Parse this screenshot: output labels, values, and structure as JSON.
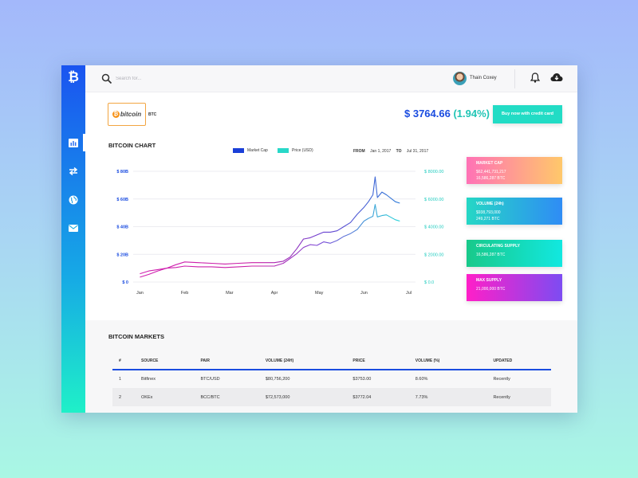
{
  "sidebar": {
    "logo": "₿",
    "items": [
      {
        "icon": "bar-chart-icon",
        "active": true
      },
      {
        "icon": "exchange-arrows-icon",
        "active": false
      },
      {
        "icon": "globe-icon",
        "active": false
      },
      {
        "icon": "mail-icon",
        "active": false
      }
    ]
  },
  "topbar": {
    "search_placeholder": "Search for...",
    "user_name": "Thain Coxey"
  },
  "coin": {
    "logo_text": "bitcoin",
    "ticker": "BTC",
    "price": "$ 3764.66",
    "change": "(1.94%)",
    "buy_label": "Buy now with credit card"
  },
  "chart": {
    "title": "BITCOIN CHART",
    "legend_market_cap": "Market Cap",
    "legend_price": "Price (USD)",
    "from_label": "FROM",
    "from_value": "Jan 1, 2017",
    "to_label": "TO",
    "to_value": "Jul 31, 2017"
  },
  "chart_data": {
    "type": "line",
    "title": "BITCOIN CHART",
    "x_ticks": [
      "Jan",
      "Feb",
      "Mar",
      "Apr",
      "May",
      "Jun",
      "Jul"
    ],
    "y_left_ticks": [
      "$ 0",
      "$ 20B",
      "$ 40B",
      "$ 60B",
      "$ 80B"
    ],
    "y_right_ticks": [
      "$ 0.0",
      "$ 2000.00",
      "$ 4000.00",
      "$ 6000.00",
      "$ 8000.00"
    ],
    "ylim_left": [
      0,
      80
    ],
    "ylim_right": [
      0,
      8000
    ],
    "grid": true,
    "series": [
      {
        "name": "Market Cap",
        "axis": "left",
        "x": [
          0,
          0.2,
          0.4,
          0.6,
          0.8,
          1.0,
          1.3,
          1.6,
          1.9,
          2.2,
          2.5,
          2.8,
          3.0,
          3.2,
          3.35,
          3.5,
          3.65,
          3.8,
          3.95,
          4.1,
          4.25,
          4.4,
          4.55,
          4.7,
          4.85,
          5.0,
          5.1,
          5.2,
          5.25,
          5.3,
          5.4,
          5.5,
          5.7,
          5.8
        ],
        "values": [
          3.5,
          5.5,
          8,
          10,
          12.5,
          14.5,
          14,
          13.5,
          13,
          13.5,
          14,
          14,
          14,
          15,
          18,
          24,
          31,
          32,
          34,
          36,
          36,
          37,
          40,
          43,
          49,
          54,
          58,
          63,
          76,
          61,
          65,
          63,
          58,
          57
        ]
      },
      {
        "name": "Price (USD)",
        "axis": "right",
        "x": [
          0,
          0.2,
          0.4,
          0.6,
          0.8,
          1.0,
          1.3,
          1.6,
          1.9,
          2.2,
          2.5,
          2.8,
          3.0,
          3.2,
          3.35,
          3.5,
          3.65,
          3.8,
          3.95,
          4.1,
          4.25,
          4.4,
          4.55,
          4.7,
          4.85,
          5.0,
          5.1,
          5.2,
          5.25,
          5.3,
          5.4,
          5.5,
          5.7,
          5.8
        ],
        "values": [
          600,
          800,
          900,
          1000,
          1050,
          1150,
          1100,
          1100,
          1050,
          1100,
          1150,
          1150,
          1150,
          1350,
          1700,
          2050,
          2500,
          2700,
          2650,
          2900,
          2800,
          3000,
          3300,
          3500,
          3800,
          4400,
          4600,
          4750,
          5600,
          4700,
          4800,
          4850,
          4500,
          4400
        ]
      }
    ]
  },
  "cards": [
    {
      "label": "MARKET CAP",
      "lines": [
        "$62,441,731,217",
        "16,586,287 BTC"
      ],
      "gradient": [
        "#ff72b6",
        "#ffc86a"
      ]
    },
    {
      "label": "VOLUME (24h)",
      "lines": [
        "$938,793,000",
        "249,271 BTC"
      ],
      "gradient": [
        "#25d7c5",
        "#2f8cf5"
      ]
    },
    {
      "label": "CIRCULATING SUPPLY",
      "lines": [
        "16,586,287 BTC"
      ],
      "gradient": [
        "#18c98a",
        "#12e8e0"
      ]
    },
    {
      "label": "MAX SUPPLY",
      "lines": [
        "21,000,000 BTC"
      ],
      "gradient": [
        "#ff1fc8",
        "#7d4cf2"
      ]
    }
  ],
  "markets": {
    "title": "BITCOIN MARKETS",
    "columns": [
      "#",
      "SOURCE",
      "PAIR",
      "VOLUME (24H)",
      "PRICE",
      "VOLUME (%)",
      "UPDATED"
    ],
    "rows": [
      [
        "1",
        "Bitfinex",
        "BTC/USD",
        "$80,756,200",
        "$3753.00",
        "8.60%",
        "Recently"
      ],
      [
        "2",
        "OKEx",
        "BCC/BTC",
        "$72,573,000",
        "$3772.04",
        "7.73%",
        "Recently"
      ]
    ]
  },
  "colors": {
    "accent_blue": "#1a4ce0",
    "accent_teal": "#22dcc5",
    "market_cap_line": "#2a4ad6",
    "price_line": "#1fd2d8"
  }
}
